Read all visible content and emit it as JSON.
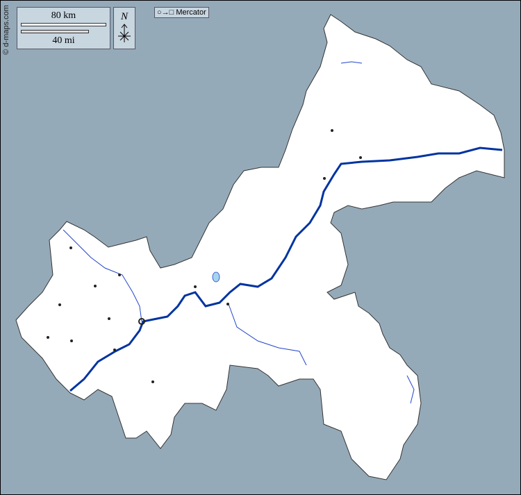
{
  "credit": "© d-maps.com",
  "scale": {
    "km_label": "80 km",
    "mi_label": "40 mi"
  },
  "north": {
    "label": "N",
    "icon": "north-arrow-icon"
  },
  "projection": {
    "label": "Mercator",
    "icon": "circle-to-square-icon"
  },
  "colors": {
    "sea": "#95aab9",
    "land": "#ffffff",
    "river": "#0033a0",
    "minor_river": "#2244cc",
    "lake": "#a5d4f0",
    "box": "#c8d6e0"
  }
}
